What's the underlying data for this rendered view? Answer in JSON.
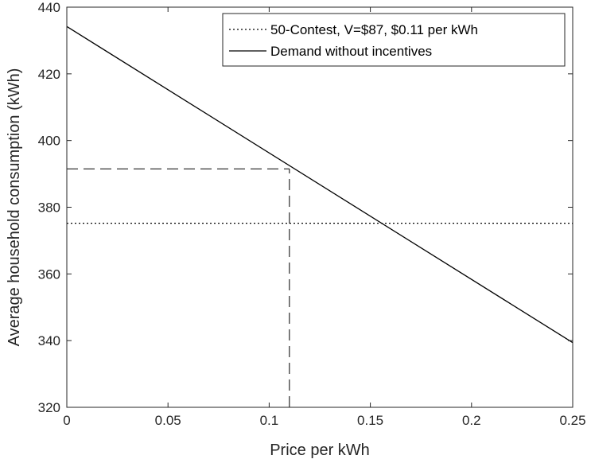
{
  "chart_data": {
    "type": "line",
    "xlabel": "Price per kWh",
    "ylabel": "Average household consumption (kWh)",
    "xlim": [
      0,
      0.25
    ],
    "ylim": [
      320,
      440
    ],
    "xticks": [
      0,
      0.05,
      0.1,
      0.15,
      0.2,
      0.25
    ],
    "xtick_labels": [
      "0",
      "0.05",
      "0.1",
      "0.15",
      "0.2",
      "0.25"
    ],
    "yticks": [
      320,
      340,
      360,
      380,
      400,
      420,
      440
    ],
    "ytick_labels": [
      "320",
      "340",
      "360",
      "380",
      "400",
      "420",
      "440"
    ],
    "grid": false,
    "legend_position": "top-right",
    "series": [
      {
        "name": "50-Contest, V=$87, $0.11 per kWh",
        "style": "dotted",
        "color": "#000000",
        "x": [
          0,
          0.25
        ],
        "y": [
          375.2,
          375.2
        ]
      },
      {
        "name": "Demand without incentives",
        "style": "solid",
        "color": "#000000",
        "x": [
          0,
          0.25
        ],
        "y": [
          434.2,
          339.4
        ]
      }
    ],
    "reference_lines": [
      {
        "style": "dashed",
        "color": "#000000",
        "x": [
          0,
          0.11
        ],
        "y": [
          391.5,
          391.5
        ]
      },
      {
        "style": "dashed",
        "color": "#000000",
        "x": [
          0.11,
          0.11
        ],
        "y": [
          320,
          391.5
        ]
      }
    ]
  }
}
